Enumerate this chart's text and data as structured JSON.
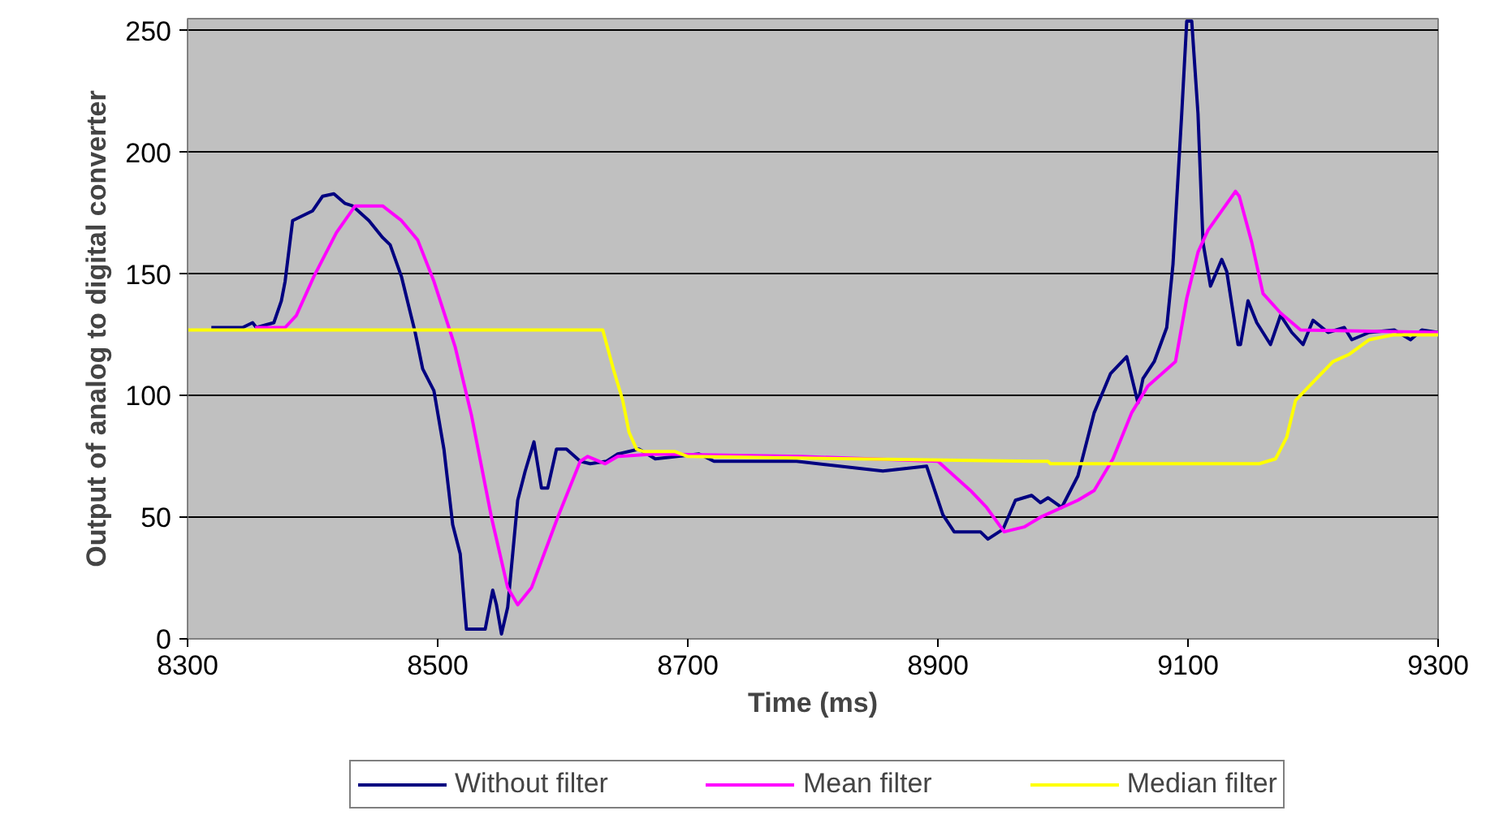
{
  "chart_data": {
    "type": "line",
    "xlabel": "Time (ms)",
    "ylabel": "Output of analog to digital converter",
    "xlim": [
      8300,
      9300
    ],
    "xticks": [
      8300,
      8500,
      8700,
      8900,
      9100,
      9300
    ],
    "ylim": [
      0,
      255
    ],
    "yticks": [
      0,
      50,
      100,
      150,
      200,
      250
    ],
    "grid": "y",
    "legend": "bottom",
    "marker": "none",
    "line_style": "solid",
    "series": [
      {
        "name": "Without filter",
        "color": "#000080",
        "x": [
          8319,
          8336,
          8344,
          8352,
          8355,
          8369,
          8375,
          8378,
          8384,
          8400,
          8408,
          8417,
          8426,
          8432,
          8445,
          8456,
          8462,
          8471,
          8482,
          8488,
          8497,
          8505,
          8512,
          8518,
          8523,
          8538,
          8544,
          8547,
          8551,
          8556,
          8564,
          8570,
          8577,
          8583,
          8588,
          8595,
          8603,
          8614,
          8622,
          8635,
          8644,
          8661,
          8674,
          8709,
          8721,
          8787,
          8856,
          8891,
          8904,
          8913,
          8934,
          8940,
          8952,
          8962,
          8975,
          8982,
          8988,
          8999,
          9012,
          9025,
          9038,
          9051,
          9060,
          9064,
          9073,
          9083,
          9088,
          9095,
          9099,
          9103,
          9108,
          9112,
          9118,
          9127,
          9131,
          9140,
          9142,
          9148,
          9155,
          9166,
          9174,
          9183,
          9192,
          9200,
          9212,
          9225,
          9231,
          9245,
          9265,
          9278,
          9287,
          9300
        ],
        "values": [
          128,
          128,
          128,
          130,
          128,
          130,
          139,
          147,
          172,
          176,
          182,
          183,
          179,
          178,
          172,
          165,
          162,
          149,
          126,
          111,
          102,
          78,
          47,
          35,
          4,
          4,
          20,
          14,
          2,
          13,
          57,
          69,
          81,
          62,
          62,
          78,
          78,
          73,
          72,
          73,
          76,
          78,
          74,
          76,
          73,
          73,
          69,
          71,
          51,
          44,
          44,
          41,
          45,
          57,
          59,
          56,
          58,
          54,
          67,
          93,
          109,
          116,
          97,
          107,
          114,
          128,
          154,
          216,
          254,
          254,
          216,
          163,
          145,
          156,
          151,
          121,
          121,
          139,
          130,
          121,
          133,
          126,
          121,
          131,
          126,
          128,
          123,
          126,
          127,
          123,
          127,
          126
        ]
      },
      {
        "name": "Mean filter",
        "color": "#ff00ff",
        "x": [
          8354,
          8378,
          8387,
          8401,
          8419,
          8434,
          8456,
          8471,
          8484,
          8497,
          8514,
          8527,
          8543,
          8556,
          8564,
          8575,
          8596,
          8614,
          8620,
          8634,
          8644,
          8674,
          8790,
          8900,
          8926,
          8939,
          8953,
          8969,
          8982,
          9012,
          9025,
          9040,
          9055,
          9068,
          9090,
          9099,
          9108,
          9116,
          9127,
          9138,
          9141,
          9151,
          9160,
          9174,
          9190,
          9300
        ],
        "values": [
          128,
          128,
          133,
          149,
          167,
          178,
          178,
          172,
          164,
          147,
          120,
          92,
          50,
          21,
          14,
          21,
          50,
          73,
          75,
          72,
          75,
          76,
          75,
          73,
          61,
          54,
          44,
          46,
          50,
          57,
          61,
          74,
          93,
          104,
          114,
          140,
          159,
          168,
          176,
          184,
          182,
          163,
          142,
          134,
          127,
          126
        ]
      },
      {
        "name": "Median filter",
        "color": "#ffff00",
        "x": [
          8300,
          8632,
          8641,
          8648,
          8653,
          8659,
          8665,
          8690,
          8700,
          8982,
          8988,
          8990,
          9157,
          9170,
          9179,
          9186,
          9199,
          9216,
          9229,
          9245,
          9264,
          9300
        ],
        "values": [
          127,
          127,
          110,
          98,
          85,
          78,
          77,
          77,
          75,
          73,
          73,
          72,
          72,
          74,
          83,
          98,
          105,
          114,
          117,
          123,
          125,
          125
        ]
      }
    ]
  }
}
